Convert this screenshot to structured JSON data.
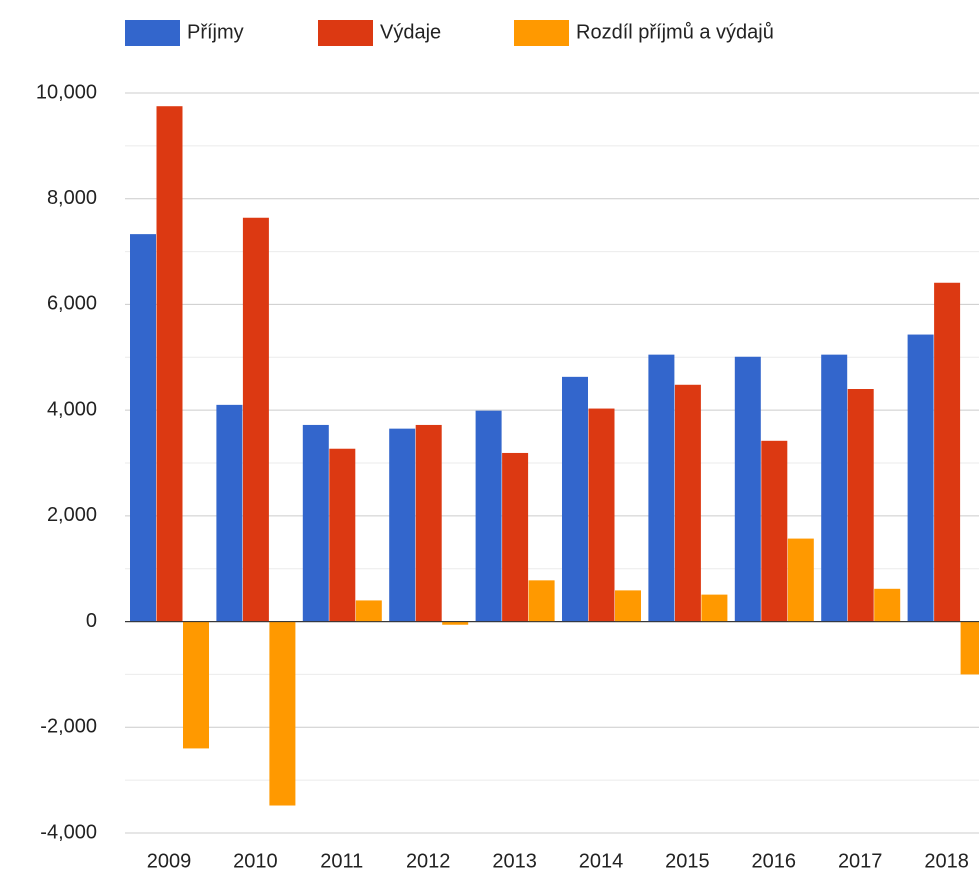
{
  "chart_data": {
    "type": "bar",
    "categories": [
      "2009",
      "2010",
      "2011",
      "2012",
      "2013",
      "2014",
      "2015",
      "2016",
      "2017",
      "2018"
    ],
    "series": [
      {
        "name": "Příjmy",
        "color": "#3366cc",
        "values": [
          7330,
          4100,
          3720,
          3650,
          3990,
          4630,
          5050,
          5010,
          5050,
          5430
        ]
      },
      {
        "name": "Výdaje",
        "color": "#dc3912",
        "values": [
          9750,
          7640,
          3270,
          3720,
          3190,
          4030,
          4480,
          3420,
          4400,
          6410
        ]
      },
      {
        "name": "Rozdíl příjmů a výdajů",
        "color": "#ff9900",
        "values": [
          -2400,
          -3480,
          400,
          -60,
          780,
          590,
          510,
          1570,
          620,
          -1000
        ]
      }
    ],
    "ylim": [
      -4000,
      10000
    ],
    "yticks": [
      {
        "value": -4000,
        "label": "-4,000"
      },
      {
        "value": -2000,
        "label": "-2,000"
      },
      0,
      {
        "value": 2000,
        "label": "2,000"
      },
      {
        "value": 4000,
        "label": "4,000"
      },
      {
        "value": 6000,
        "label": "6,000"
      },
      {
        "value": 8000,
        "label": "8,000"
      },
      {
        "value": 10000,
        "label": "10,000"
      }
    ],
    "minor_yticks": [
      -3000,
      -1000,
      1000,
      3000,
      5000,
      7000,
      9000
    ],
    "grid": true,
    "legend": "top"
  }
}
